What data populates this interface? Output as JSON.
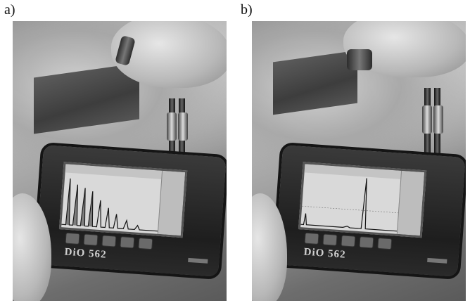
{
  "figure": {
    "panels": [
      {
        "label": "a)",
        "device_label": "DiO 562"
      },
      {
        "label": "b)",
        "device_label": "DiO 562"
      }
    ]
  }
}
